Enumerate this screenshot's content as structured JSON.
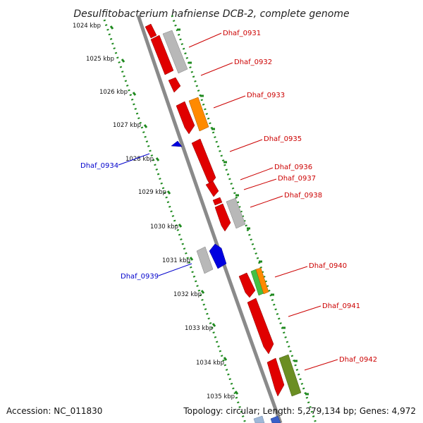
{
  "title": "Desulfitobacterium hafniense DCB-2, complete genome",
  "footer": {
    "accession": "Accession: NC_011830",
    "summary": "Topology: circular; Length: 5,279,134 bp; Genes: 4,972"
  },
  "colors": {
    "forward_label": "#cc0000",
    "reverse_label": "#0000cc",
    "tick_green": "#1f8a1f",
    "backbone": "#8a8a8a"
  },
  "kbp_ticks": [
    "1024 kbp",
    "1025 kbp",
    "1026 kbp",
    "1027 kbp",
    "1028 kbp",
    "1029 kbp",
    "1030 kbp",
    "1031 kbp",
    "1032 kbp",
    "1033 kbp",
    "1034 kbp",
    "1035 kbp"
  ],
  "gene_labels": [
    {
      "id": "Dhaf_0931",
      "strand": "forward"
    },
    {
      "id": "Dhaf_0932",
      "strand": "forward"
    },
    {
      "id": "Dhaf_0933",
      "strand": "forward"
    },
    {
      "id": "Dhaf_0935",
      "strand": "forward"
    },
    {
      "id": "Dhaf_0936",
      "strand": "forward"
    },
    {
      "id": "Dhaf_0937",
      "strand": "forward"
    },
    {
      "id": "Dhaf_0938",
      "strand": "forward"
    },
    {
      "id": "Dhaf_0940",
      "strand": "forward"
    },
    {
      "id": "Dhaf_0941",
      "strand": "forward"
    },
    {
      "id": "Dhaf_0942",
      "strand": "forward"
    },
    {
      "id": "Dhaf_0934",
      "strand": "reverse"
    },
    {
      "id": "Dhaf_0939",
      "strand": "reverse"
    }
  ]
}
